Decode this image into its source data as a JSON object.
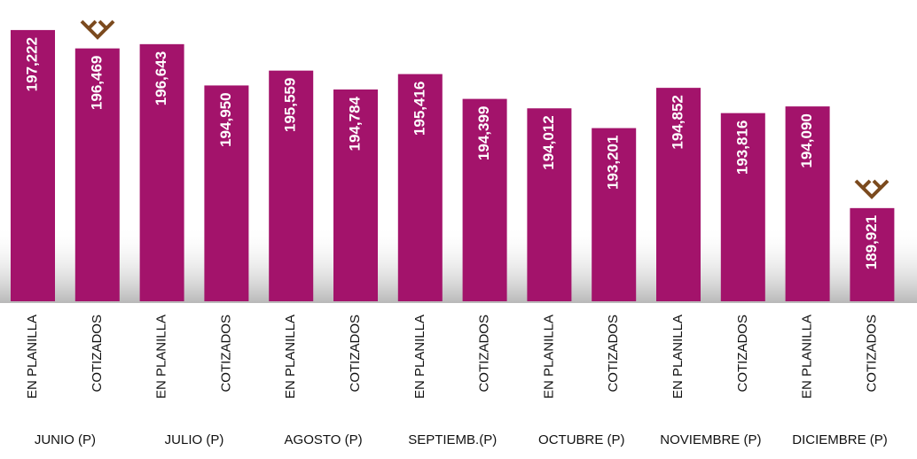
{
  "chart_data": {
    "type": "bar",
    "categories": [
      "EN PLANILLA",
      "COTIZADOS",
      "EN PLANILLA",
      "COTIZADOS",
      "EN PLANILLA",
      "COTIZADOS",
      "EN PLANILLA",
      "COTIZADOS",
      "EN PLANILLA",
      "COTIZADOS",
      "EN PLANILLA",
      "COTIZADOS",
      "EN PLANILLA",
      "COTIZADOS"
    ],
    "groups": [
      "JUNIO (P)",
      "JULIO (P)",
      "AGOSTO (P)",
      "SEPTIEMB.(P)",
      "OCTUBRE (P)",
      "NOVIEMBRE (P)",
      "DICIEMBRE (P)"
    ],
    "values": [
      197222,
      196469,
      196643,
      194950,
      195559,
      194784,
      195416,
      194399,
      194012,
      193201,
      194852,
      193816,
      194090,
      189921
    ],
    "value_labels": [
      "197,222",
      "196,469",
      "196,643",
      "194,950",
      "195,559",
      "194,784",
      "195,416",
      "194,399",
      "194,012",
      "193,201",
      "194,852",
      "193,816",
      "194,090",
      "189,921"
    ],
    "color": "#a3136b",
    "ylim": [
      186100,
      197800
    ]
  }
}
